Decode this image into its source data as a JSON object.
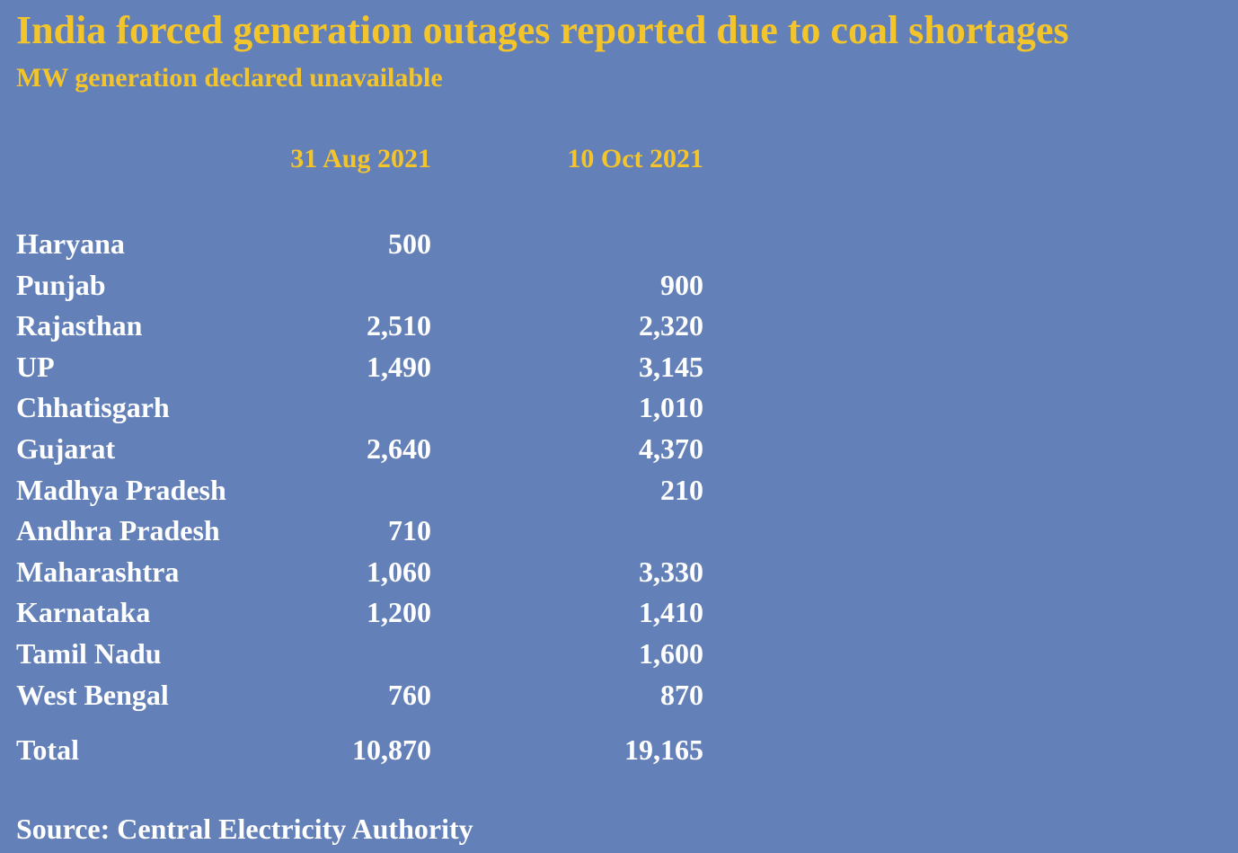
{
  "chart_data": {
    "type": "table",
    "title": "India forced generation outages reported due to coal shortages",
    "subtitle": "MW generation declared unavailable",
    "columns": [
      "31 Aug 2021",
      "10 Oct 2021"
    ],
    "rows": [
      {
        "label": "Haryana",
        "values": [
          "500",
          ""
        ]
      },
      {
        "label": "Punjab",
        "values": [
          "",
          "900"
        ]
      },
      {
        "label": "Rajasthan",
        "values": [
          "2,510",
          "2,320"
        ]
      },
      {
        "label": "UP",
        "values": [
          "1,490",
          "3,145"
        ]
      },
      {
        "label": "Chhatisgarh",
        "values": [
          "",
          "1,010"
        ]
      },
      {
        "label": "Gujarat",
        "values": [
          "2,640",
          "4,370"
        ]
      },
      {
        "label": "Madhya Pradesh",
        "values": [
          "",
          "210"
        ]
      },
      {
        "label": "Andhra Pradesh",
        "values": [
          "710",
          ""
        ]
      },
      {
        "label": "Maharashtra",
        "values": [
          "1,060",
          "3,330"
        ]
      },
      {
        "label": "Karnataka",
        "values": [
          "1,200",
          "1,410"
        ]
      },
      {
        "label": "Tamil Nadu",
        "values": [
          "",
          "1,600"
        ]
      },
      {
        "label": "West Bengal",
        "values": [
          "760",
          "870"
        ]
      }
    ],
    "total": {
      "label": "Total",
      "values": [
        "10,870",
        "19,165"
      ]
    },
    "source": "Source: Central Electricity Authority"
  },
  "colors": {
    "background": "#6480b8",
    "accent": "#f4c52a",
    "text": "#ffffff"
  }
}
